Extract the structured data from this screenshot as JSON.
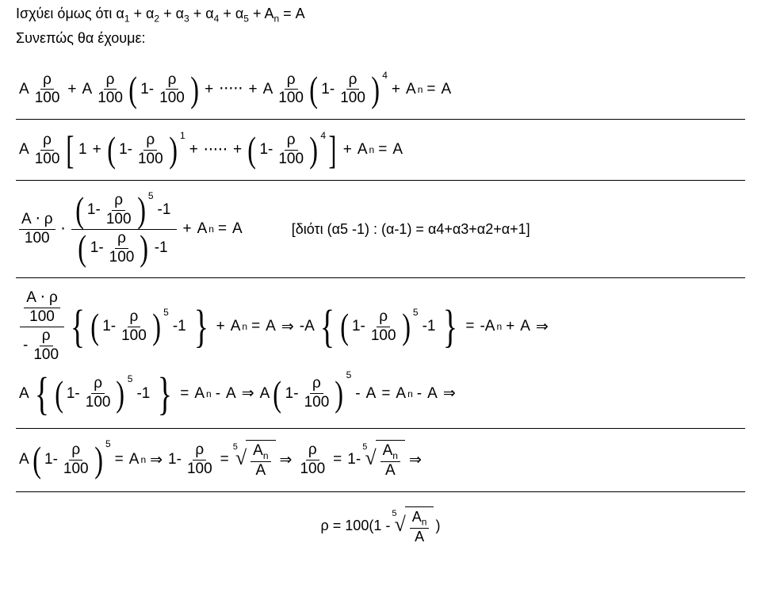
{
  "intro": {
    "line1": "Ισχύει όμως ότι α",
    "sub1": "1",
    "plus": " + α",
    "sub2": "2",
    "sub3": "3",
    "sub4": "4",
    "sub5": "5",
    "plusA": " + Α",
    "subn": "n",
    "eqA": " = Α",
    "line2": "Συνεπώς θα έχουμε:"
  },
  "sym": {
    "A": "Α",
    "rho": "ρ",
    "h100": "100",
    "plus": "+",
    "minus": "-",
    "one": "1",
    "dots": "⋅⋅⋅⋅⋅",
    "cdot": "⋅",
    "eq": "=",
    "An": "Α",
    "n": "n",
    "pow4": "4",
    "pow1": "1",
    "pow5": "5",
    "impl": "⇒",
    "minusA": "-Α",
    "minus1": "-1",
    "oneMinus": "1-",
    "five": "5",
    "rootn": "5"
  },
  "note3": "[διότι (α5 -1) : (α-1) = α4+α3+α2+α+1]",
  "final": "ρ = 100(1 -",
  "finalClose": ")"
}
